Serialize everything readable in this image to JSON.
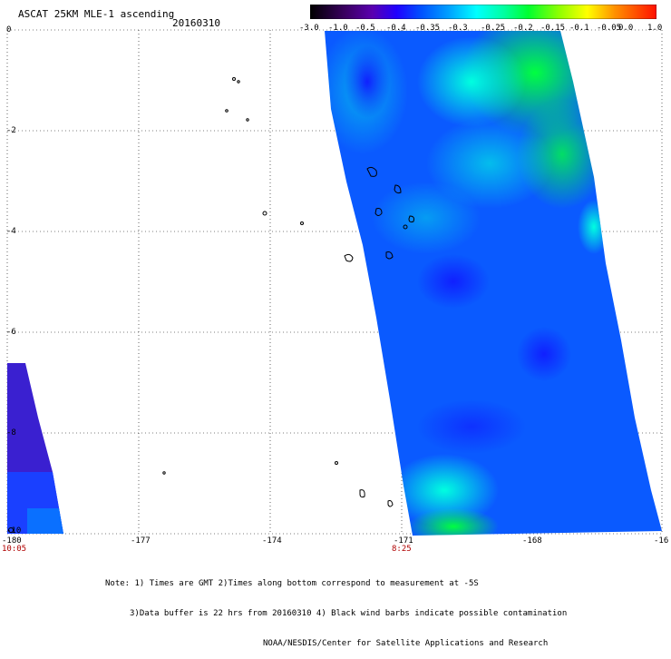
{
  "header": {
    "title": "ASCAT 25KM MLE-1 ascending",
    "date": "20160310"
  },
  "colorbar": {
    "labels": [
      "-3.0",
      "-1.0",
      "-0.5",
      "-0.4",
      "-0.35",
      "-0.3",
      "-0.25",
      "-0.2",
      "-0.15",
      "-0.1",
      "-0.05",
      "0.0",
      "1.0"
    ],
    "colors": [
      "#000000",
      "#4a0080",
      "#2000ff",
      "#0060ff",
      "#00b0ff",
      "#00ffff",
      "#00ffa0",
      "#00ff00",
      "#a0ff00",
      "#ffff00",
      "#ffa000",
      "#ff4000",
      "#ff0000"
    ]
  },
  "axes": {
    "x_ticks": [
      "-180",
      "-177",
      "-174",
      "-171",
      "-168",
      "-16"
    ],
    "y_ticks": [
      "0",
      "-2",
      "-4",
      "-6",
      "-8",
      "-10"
    ],
    "time_labels": [
      "10:05",
      "8:25"
    ]
  },
  "notes": {
    "line1": "Note: 1) Times are GMT 2)Times along bottom correspond to measurement at -5S",
    "line2": "3)Data buffer is 22 hrs from 20160310 4) Black wind barbs indicate possible contamination",
    "line3": "NOAA/NESDIS/Center for Satellite Applications and Research"
  }
}
